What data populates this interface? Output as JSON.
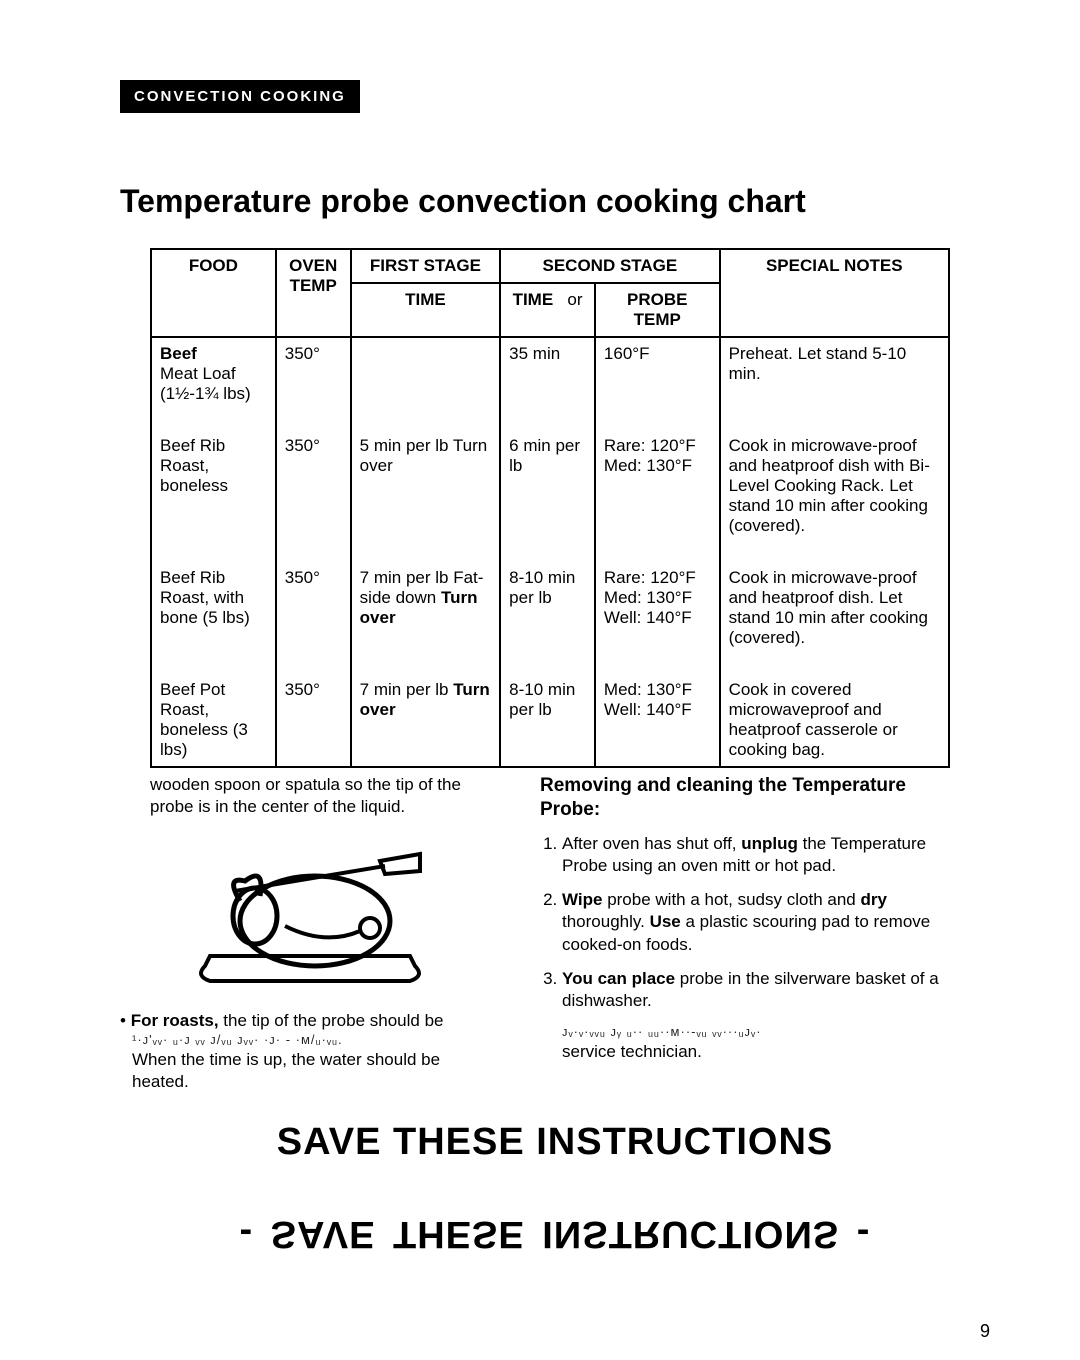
{
  "tab": "CONVECTION COOKING",
  "title": "Temperature probe convection cooking chart",
  "headers": {
    "food": "FOOD",
    "oven": "OVEN TEMP",
    "first": "FIRST STAGE",
    "first_time": "TIME",
    "second": "SECOND STAGE",
    "time": "TIME",
    "or": "or",
    "probe": "PROBE TEMP",
    "notes": "SPECIAL NOTES"
  },
  "rows": [
    {
      "food_bold": "Beef",
      "food": "Meat Loaf (1½-1¾ lbs)",
      "oven": "350°",
      "first": "",
      "time": "35 min",
      "probe": "160°F",
      "notes": "Preheat. Let stand 5-10 min."
    },
    {
      "food": "Beef Rib Roast, boneless",
      "oven": "350°",
      "first": "5 min per lb Turn over",
      "time": "6 min per lb",
      "probe": "Rare: 120°F Med: 130°F",
      "notes": "Cook in microwave-proof and heatproof dish with Bi-Level Cooking Rack. Let stand 10 min after cooking (covered)."
    },
    {
      "food": "Beef Rib Roast, with bone (5 lbs)",
      "oven": "350°",
      "first": "7 min per lb Fat-side down Turn over",
      "time": "8-10 min per lb",
      "probe": "Rare: 120°F Med: 130°F Well: 140°F",
      "notes": "Cook in microwave-proof and heatproof dish. Let stand 10 min after cooking (covered)."
    },
    {
      "food": "Beef Pot Roast, boneless (3 lbs)",
      "oven": "350°",
      "first": "7 min per lb Turn over",
      "time": "8-10 min per lb",
      "probe": "Med: 130°F Well: 140°F",
      "notes": "Cook in covered microwaveproof and heatproof casserole or cooking bag."
    }
  ],
  "left": {
    "line1": "wooden spoon or spatula so the tip of the probe is in the center of the liquid.",
    "bullet_lead": "For roasts,",
    "bullet_rest": " the tip of the probe should be",
    "glitch": "¹·ᴊ'ᵥᵥ· ᵤ·ᴊ ᵥᵥ ᴊ/ᵥᵤ ᴊᵥᵥ· ·ᴊ· - ·ᴍ/ᵤ·ᵥᵤ.",
    "line3": "When the time is up, the water should be heated."
  },
  "right": {
    "heading": "Removing and cleaning the Temperature Probe:",
    "steps": [
      "After oven has shut off, <b>unplug</b> the Temperature Probe using an oven mitt or hot pad.",
      "<b>Wipe</b> probe with a hot, sudsy cloth and <b>dry</b> thoroughly. <b>Use</b> a plastic scouring pad to remove cooked-on foods.",
      "<b>You can place</b> probe in the silverware basket of a dishwasher."
    ],
    "glitch": "ᴊᵥ·ᵥ·ᵥᵥᵤ ᴊᵧ ᵤ·· ᵤᵤ··ᴍ··-ᵥᵤ ᵥᵥ···ᵤᴊᵥ·",
    "tech": "service technician."
  },
  "banner": "SAVE THESE INSTRUCTIONS",
  "mirror": "SAVE THESE INSTRUCTIONS",
  "page": "9",
  "colors": {
    "bg": "#ffffff",
    "fg": "#000000"
  }
}
